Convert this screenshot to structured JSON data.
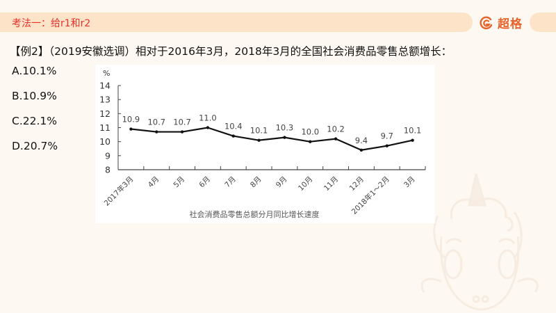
{
  "header": {
    "title": "考法一：给r1和r2",
    "brand": "超格",
    "accent_color": "#e8302a",
    "brand_color": "#e8632a",
    "bar_color": "#fde3c8"
  },
  "question": {
    "text": "【例2】（2019安徽选调）相对于2016年3月，2018年3月的全国社会消费品零售总额增长："
  },
  "options": [
    {
      "label": "A.10.1%"
    },
    {
      "label": "B.10.9%"
    },
    {
      "label": "C.22.1%"
    },
    {
      "label": "D.20.7%"
    }
  ],
  "chart_data": {
    "type": "line",
    "title": "社会消费品零售总额分月同比增长速度",
    "xlabel": "",
    "ylabel": "%",
    "ylim": [
      8,
      14
    ],
    "yticks": [
      8,
      9,
      10,
      11,
      12,
      13,
      14
    ],
    "grid": false,
    "legend": null,
    "categories": [
      "2017年3月",
      "4月",
      "5月",
      "6月",
      "7月",
      "8月",
      "9月",
      "10月",
      "11月",
      "12月",
      "2018年1-2月",
      "3月"
    ],
    "series": [
      {
        "name": "同比增长速度",
        "values": [
          10.9,
          10.7,
          10.7,
          11.0,
          10.4,
          10.1,
          10.3,
          10.0,
          10.2,
          9.4,
          9.7,
          10.1
        ],
        "data_labels": [
          "10.9",
          "10.7",
          "10.7",
          "11.0",
          "10.4",
          "10.1",
          "10.3",
          "10.0",
          "10.2",
          "9.4",
          "9.7",
          "10.1"
        ]
      }
    ]
  }
}
